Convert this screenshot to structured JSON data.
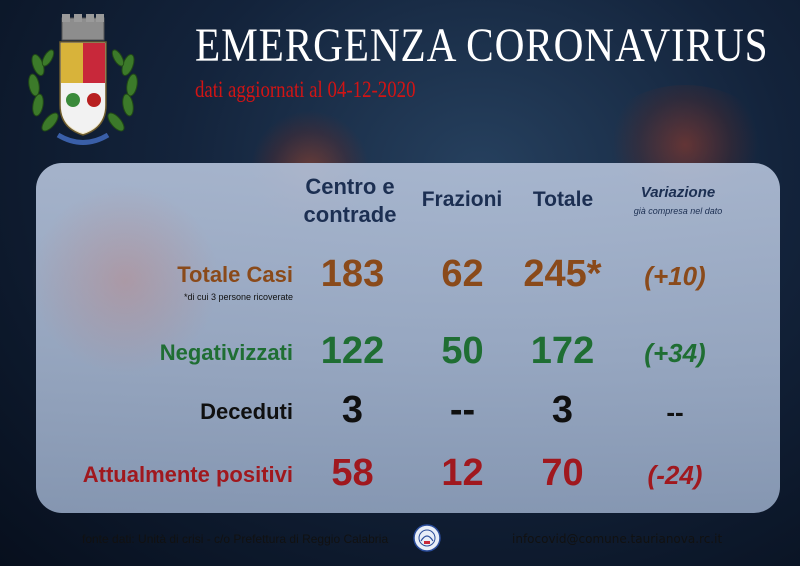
{
  "header": {
    "title": "EMERGENZA CORONAVIRUS",
    "subtitle": "dati aggiornati al 04-12-2020"
  },
  "columns": {
    "centro_line1": "Centro e",
    "centro_line2": "contrade",
    "frazioni": "Frazioni",
    "totale": "Totale",
    "variazione": "Variazione",
    "variazione_note": "già compresa nel dato"
  },
  "rows": [
    {
      "label": "Totale Casi",
      "note": "*di cui 3 persone ricoverate",
      "centro": "183",
      "frazioni": "62",
      "totale": "245*",
      "variazione": "(+10)",
      "color": "#8a4a1a"
    },
    {
      "label": "Negativizzati",
      "note": "",
      "centro": "122",
      "frazioni": "50",
      "totale": "172",
      "variazione": "(+34)",
      "color": "#1f6e33"
    },
    {
      "label": "Deceduti",
      "note": "",
      "centro": "3",
      "frazioni": "--",
      "totale": "3",
      "variazione": "--",
      "color": "#101010"
    },
    {
      "label": "Attualmente positivi",
      "note": "",
      "centro": "58",
      "frazioni": "12",
      "totale": "70",
      "variazione": "(-24)",
      "color": "#a0181e"
    }
  ],
  "footer": {
    "source": "fonte dati: Unità di crisi - c/o Prefettura di Reggio Calabria",
    "email": "infocovid@comune.taurianova.rc.it"
  },
  "icons": {
    "emblem": "municipal-coat-of-arms-icon",
    "seal": "prefettura-seal-icon"
  }
}
